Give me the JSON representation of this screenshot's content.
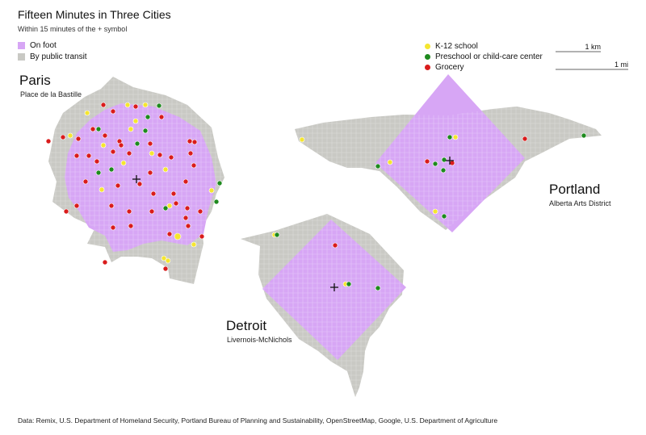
{
  "title": "Fifteen Minutes in Three Cities",
  "subtitle": "Within 15 minutes of the + symbol",
  "legend": {
    "areas": [
      {
        "label": "On foot",
        "color": "#d7a6f5"
      },
      {
        "label": "By public transit",
        "color": "#c9c9c4"
      }
    ],
    "amenities": [
      {
        "label": "K-12 school",
        "color": "#f5e630"
      },
      {
        "label": "Preschool or child-care center",
        "color": "#1e8a1e"
      },
      {
        "label": "Grocery",
        "color": "#d91c1c"
      }
    ]
  },
  "scale": {
    "km_label": "1 km",
    "mi_label": "1 mi"
  },
  "cities": [
    {
      "name": "Paris",
      "neighborhood": "Place de la Bastille"
    },
    {
      "name": "Portland",
      "neighborhood": "Alberta Arts District"
    },
    {
      "name": "Detroit",
      "neighborhood": "Livernois-McNichols"
    }
  ],
  "source": "Data: Remix, U.S. Department of Homeland Security, Portland Bureau of Planning and Sustainability, OpenStreetMap, Google, U.S. Department of Agriculture"
}
